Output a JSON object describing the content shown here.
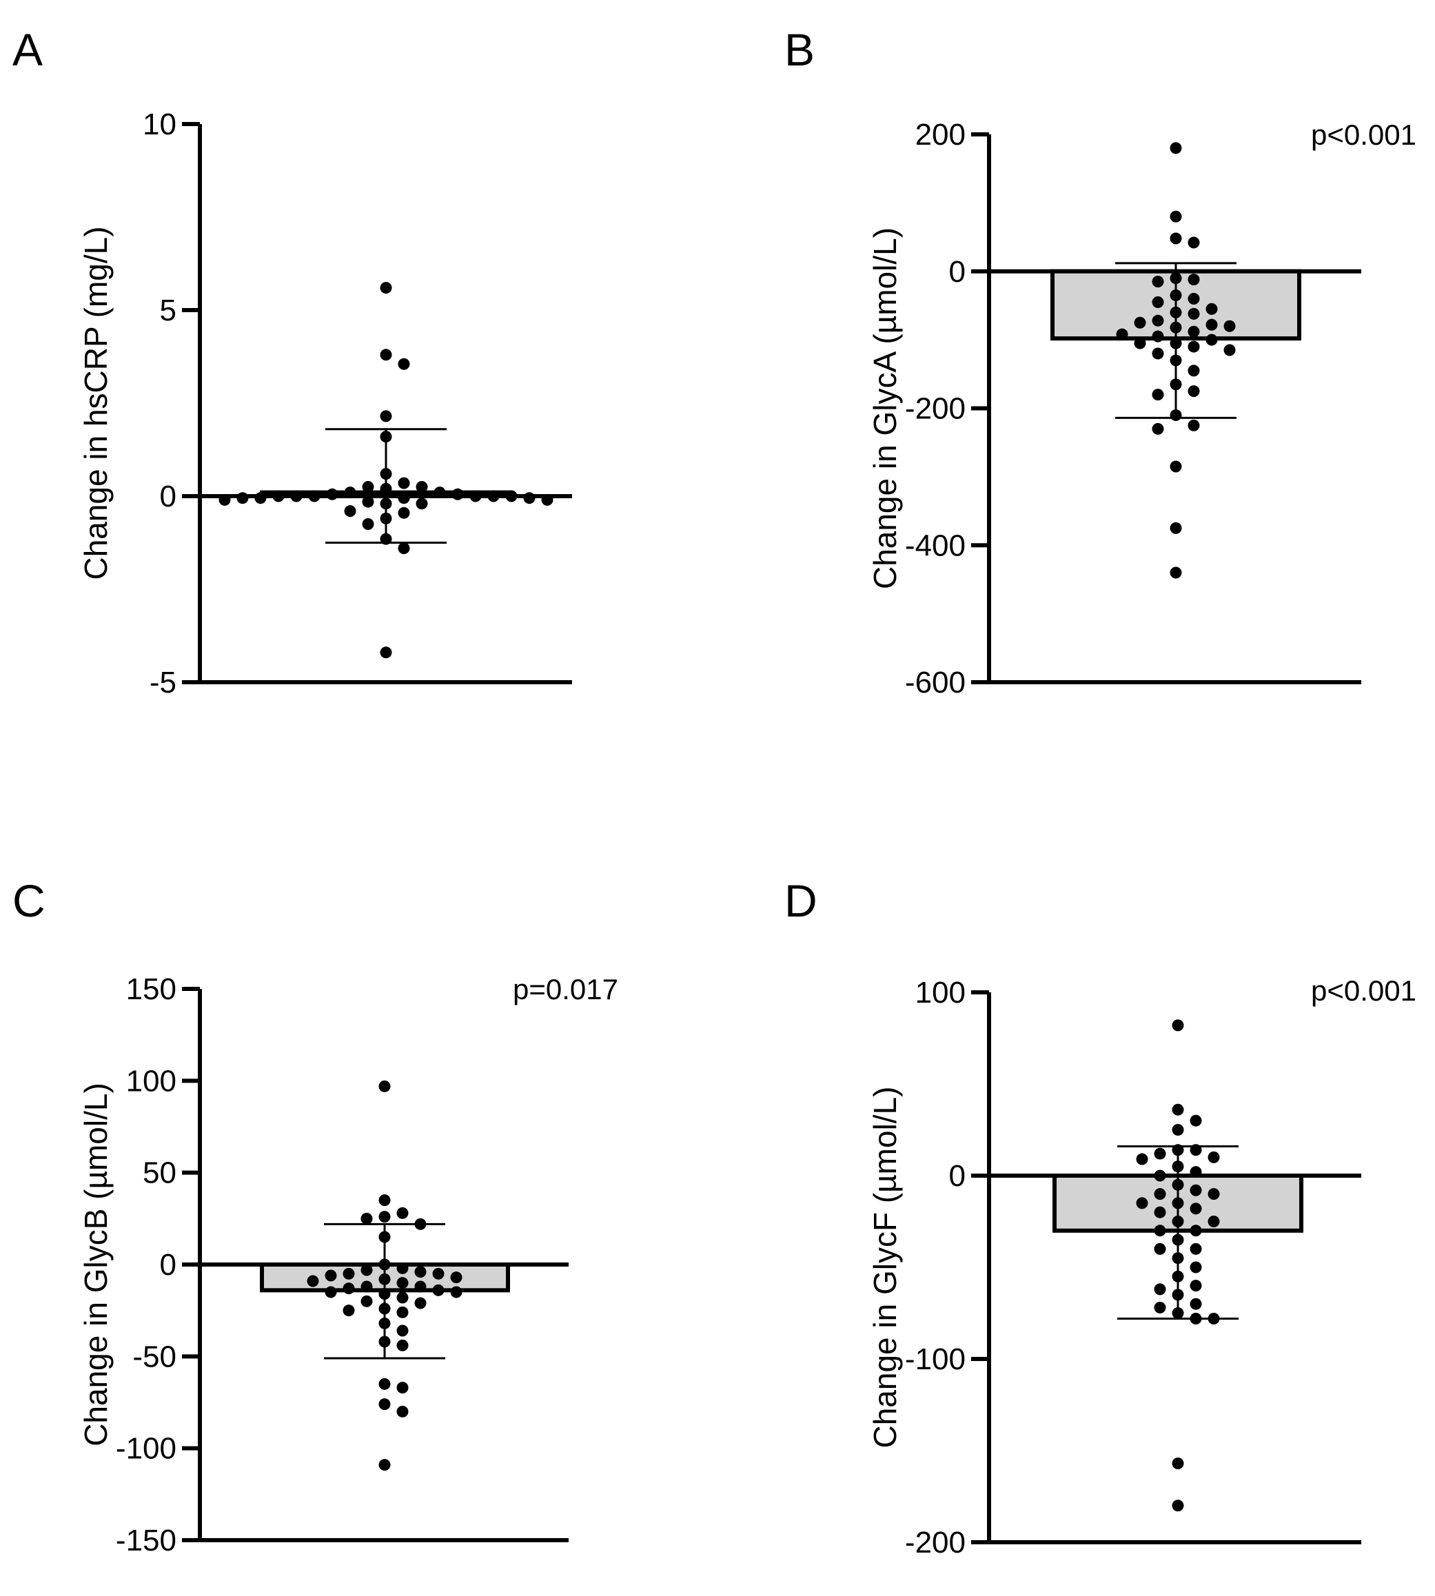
{
  "chart_data": [
    {
      "panel": "A",
      "type": "bar",
      "title": "",
      "xlabel": "",
      "ylabel": "Change in hsCRP (mg/L)",
      "ylim": [
        -5,
        10
      ],
      "yticks": [
        -5,
        0,
        5,
        10
      ],
      "tick_labels": [
        "-5",
        "0",
        "5",
        "10"
      ],
      "bar_value": 0.1,
      "error_bar": {
        "upper": 1.8,
        "lower": -1.25
      },
      "p_value": "",
      "points": [
        5.6,
        3.8,
        3.55,
        2.15,
        1.6,
        0.6,
        0.35,
        0.25,
        0.25,
        0.2,
        0.1,
        0.1,
        0.05,
        0.05,
        0.0,
        0.0,
        0.0,
        0.0,
        0.0,
        0.0,
        -0.05,
        -0.05,
        -0.05,
        -0.05,
        -0.1,
        -0.1,
        -0.15,
        -0.2,
        -0.2,
        -0.4,
        -0.45,
        -0.6,
        -0.75,
        -1.15,
        -1.4,
        -4.2
      ]
    },
    {
      "panel": "B",
      "type": "bar",
      "title": "",
      "xlabel": "",
      "ylabel": "Change in GlycA (µmol/L)",
      "ylim": [
        -600,
        200
      ],
      "yticks": [
        -600,
        -400,
        -200,
        0,
        200
      ],
      "tick_labels": [
        "-600",
        "-400",
        "-200",
        "0",
        "200"
      ],
      "bar_value": -98,
      "error_bar": {
        "upper": 12,
        "lower": -214
      },
      "p_value": "p<0.001",
      "points": [
        180,
        80,
        48,
        42,
        -10,
        -12,
        -15,
        -35,
        -40,
        -45,
        -55,
        -60,
        -62,
        -72,
        -75,
        -78,
        -80,
        -82,
        -88,
        -92,
        -95,
        -100,
        -105,
        -105,
        -110,
        -115,
        -120,
        -130,
        -145,
        -165,
        -175,
        -180,
        -210,
        -225,
        -230,
        -285,
        -375,
        -440
      ]
    },
    {
      "panel": "C",
      "type": "bar",
      "title": "",
      "xlabel": "",
      "ylabel": "Change in GlycB (µmol/L)",
      "ylim": [
        -150,
        150
      ],
      "yticks": [
        -150,
        -100,
        -50,
        0,
        50,
        100,
        150
      ],
      "tick_labels": [
        "-150",
        "-100",
        "-50",
        "0",
        "50",
        "100",
        "150"
      ],
      "bar_value": -14,
      "error_bar": {
        "upper": 22,
        "lower": -51
      },
      "p_value": "p=0.017",
      "points": [
        97,
        35,
        28,
        26,
        25,
        22,
        15,
        0,
        -2,
        -3,
        -4,
        -5,
        -5,
        -6,
        -7,
        -8,
        -9,
        -10,
        -12,
        -12,
        -13,
        -14,
        -15,
        -15,
        -16,
        -18,
        -20,
        -21,
        -24,
        -25,
        -26,
        -32,
        -36,
        -42,
        -44,
        -65,
        -67,
        -76,
        -80,
        -109
      ]
    },
    {
      "panel": "D",
      "type": "bar",
      "title": "",
      "xlabel": "",
      "ylabel": "Change in GlycF (µmol/L)",
      "ylim": [
        -200,
        100
      ],
      "yticks": [
        -200,
        -100,
        0,
        100
      ],
      "tick_labels": [
        "-200",
        "-100",
        "0",
        "100"
      ],
      "bar_value": -30,
      "error_bar": {
        "upper": 16,
        "lower": -78
      },
      "p_value": "p<0.001",
      "points": [
        82,
        36,
        30,
        25,
        14,
        14,
        12,
        10,
        9,
        5,
        2,
        0,
        -5,
        -8,
        -10,
        -10,
        -15,
        -15,
        -18,
        -20,
        -25,
        -25,
        -30,
        -30,
        -35,
        -40,
        -40,
        -45,
        -50,
        -55,
        -60,
        -62,
        -65,
        -70,
        -72,
        -75,
        -78,
        -78,
        -157,
        -180
      ]
    }
  ]
}
